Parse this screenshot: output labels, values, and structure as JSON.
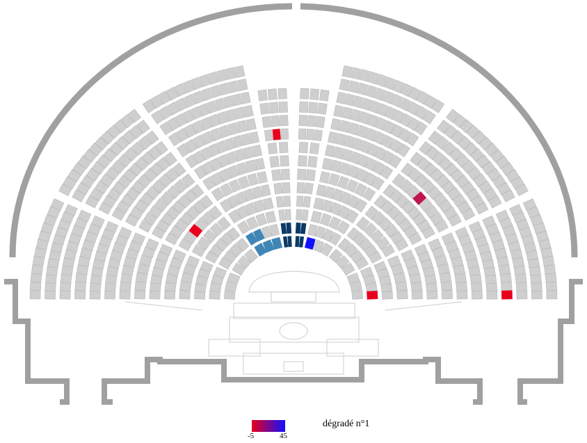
{
  "legend": {
    "title": "dégradé n°1",
    "min_label": "-5",
    "max_label": "45",
    "gradient_from": "#e8001c",
    "gradient_to": "#1010ff"
  },
  "colors": {
    "wall": "#a0a0a0",
    "seat": "#cfcfcf",
    "seat_outline": "#b8b8b8",
    "podium_line": "#d0d0d0"
  },
  "highlight_groups": [
    {
      "name": "dark-navy-block",
      "color": "#0b3a66"
    },
    {
      "name": "steel-blue-block",
      "color": "#3f86b6"
    },
    {
      "name": "red-seats",
      "color": "#e8001c"
    },
    {
      "name": "crimson-seat",
      "color": "#c0164e"
    },
    {
      "name": "blue-seat",
      "color": "#1010ff"
    }
  ]
}
